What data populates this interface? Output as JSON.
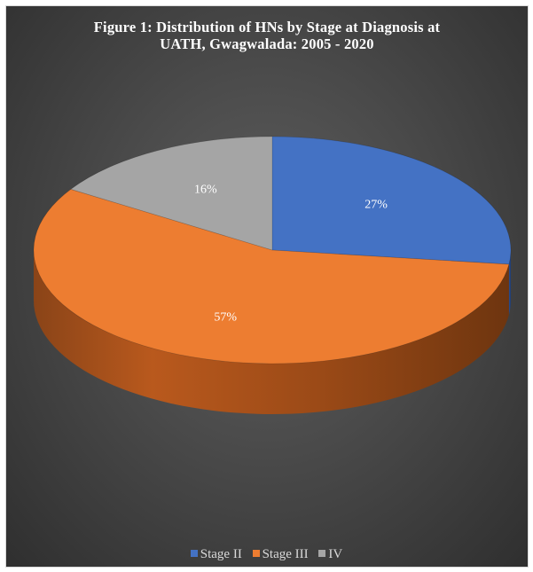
{
  "chart_data": {
    "type": "pie",
    "title": "Figure 1: Distribution of    HNs  by Stage at Diagnosis at UATH, Gwagwalada: 2005    -  2020",
    "title_lines": [
      "Figure 1: Distribution of    HNs  by Stage at Diagnosis at",
      "UATH, Gwagwalada: 2005    -  2020"
    ],
    "categories": [
      "Stage II",
      "Stage III",
      "IV"
    ],
    "values": [
      27,
      57,
      16
    ],
    "labels": [
      "27%",
      "57%",
      "16%"
    ],
    "colors": [
      "#4472C4",
      "#ED7D31",
      "#A5A5A5"
    ],
    "legend_position": "bottom",
    "style": "3d-pie"
  }
}
